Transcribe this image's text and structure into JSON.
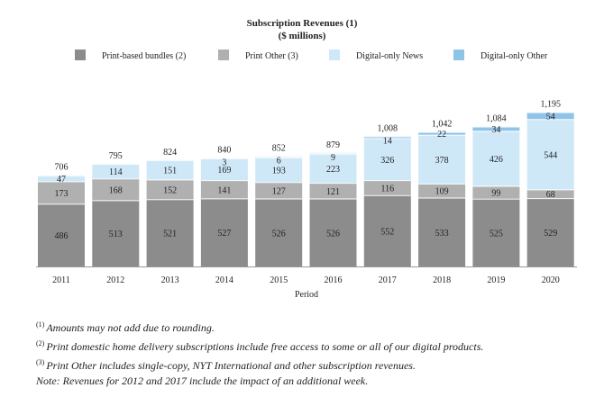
{
  "chart_data": {
    "type": "bar",
    "stacked": true,
    "title": "Subscription Revenues (1)",
    "subtitle": "($ millions)",
    "xlabel": "Period",
    "ylabel": "",
    "legend_position": "top",
    "categories": [
      "2011",
      "2012",
      "2013",
      "2014",
      "2015",
      "2016",
      "2017",
      "2018",
      "2019",
      "2020"
    ],
    "series": [
      {
        "name": "Print-based bundles (2)",
        "color": "#8c8c8c",
        "values": [
          486,
          513,
          521,
          527,
          526,
          526,
          552,
          533,
          525,
          529
        ]
      },
      {
        "name": "Print Other (3)",
        "color": "#b0b0b0",
        "values": [
          173,
          168,
          152,
          141,
          127,
          121,
          116,
          109,
          99,
          68
        ]
      },
      {
        "name": "Digital-only News",
        "color": "#cfe8f8",
        "values": [
          47,
          114,
          151,
          169,
          193,
          223,
          326,
          378,
          426,
          544
        ]
      },
      {
        "name": "Digital-only Other",
        "color": "#8fc4e8",
        "values": [
          null,
          null,
          null,
          3,
          6,
          9,
          14,
          22,
          34,
          54
        ]
      }
    ],
    "totals": [
      "706",
      "795",
      "824",
      "840",
      "852",
      "879",
      "1,008",
      "1,042",
      "1,084",
      "1,195"
    ]
  },
  "notes": [
    {
      "marker": "(1)",
      "text": "Amounts may not add due to rounding."
    },
    {
      "marker": "(2)",
      "text": "Print domestic home delivery subscriptions include free access to some or all of our digital products."
    },
    {
      "marker": "(3)",
      "text": "Print Other includes single-copy, NYT International and other subscription revenues."
    },
    {
      "marker": "",
      "text": "Note: Revenues for 2012 and 2017 include the impact of an additional week."
    }
  ]
}
